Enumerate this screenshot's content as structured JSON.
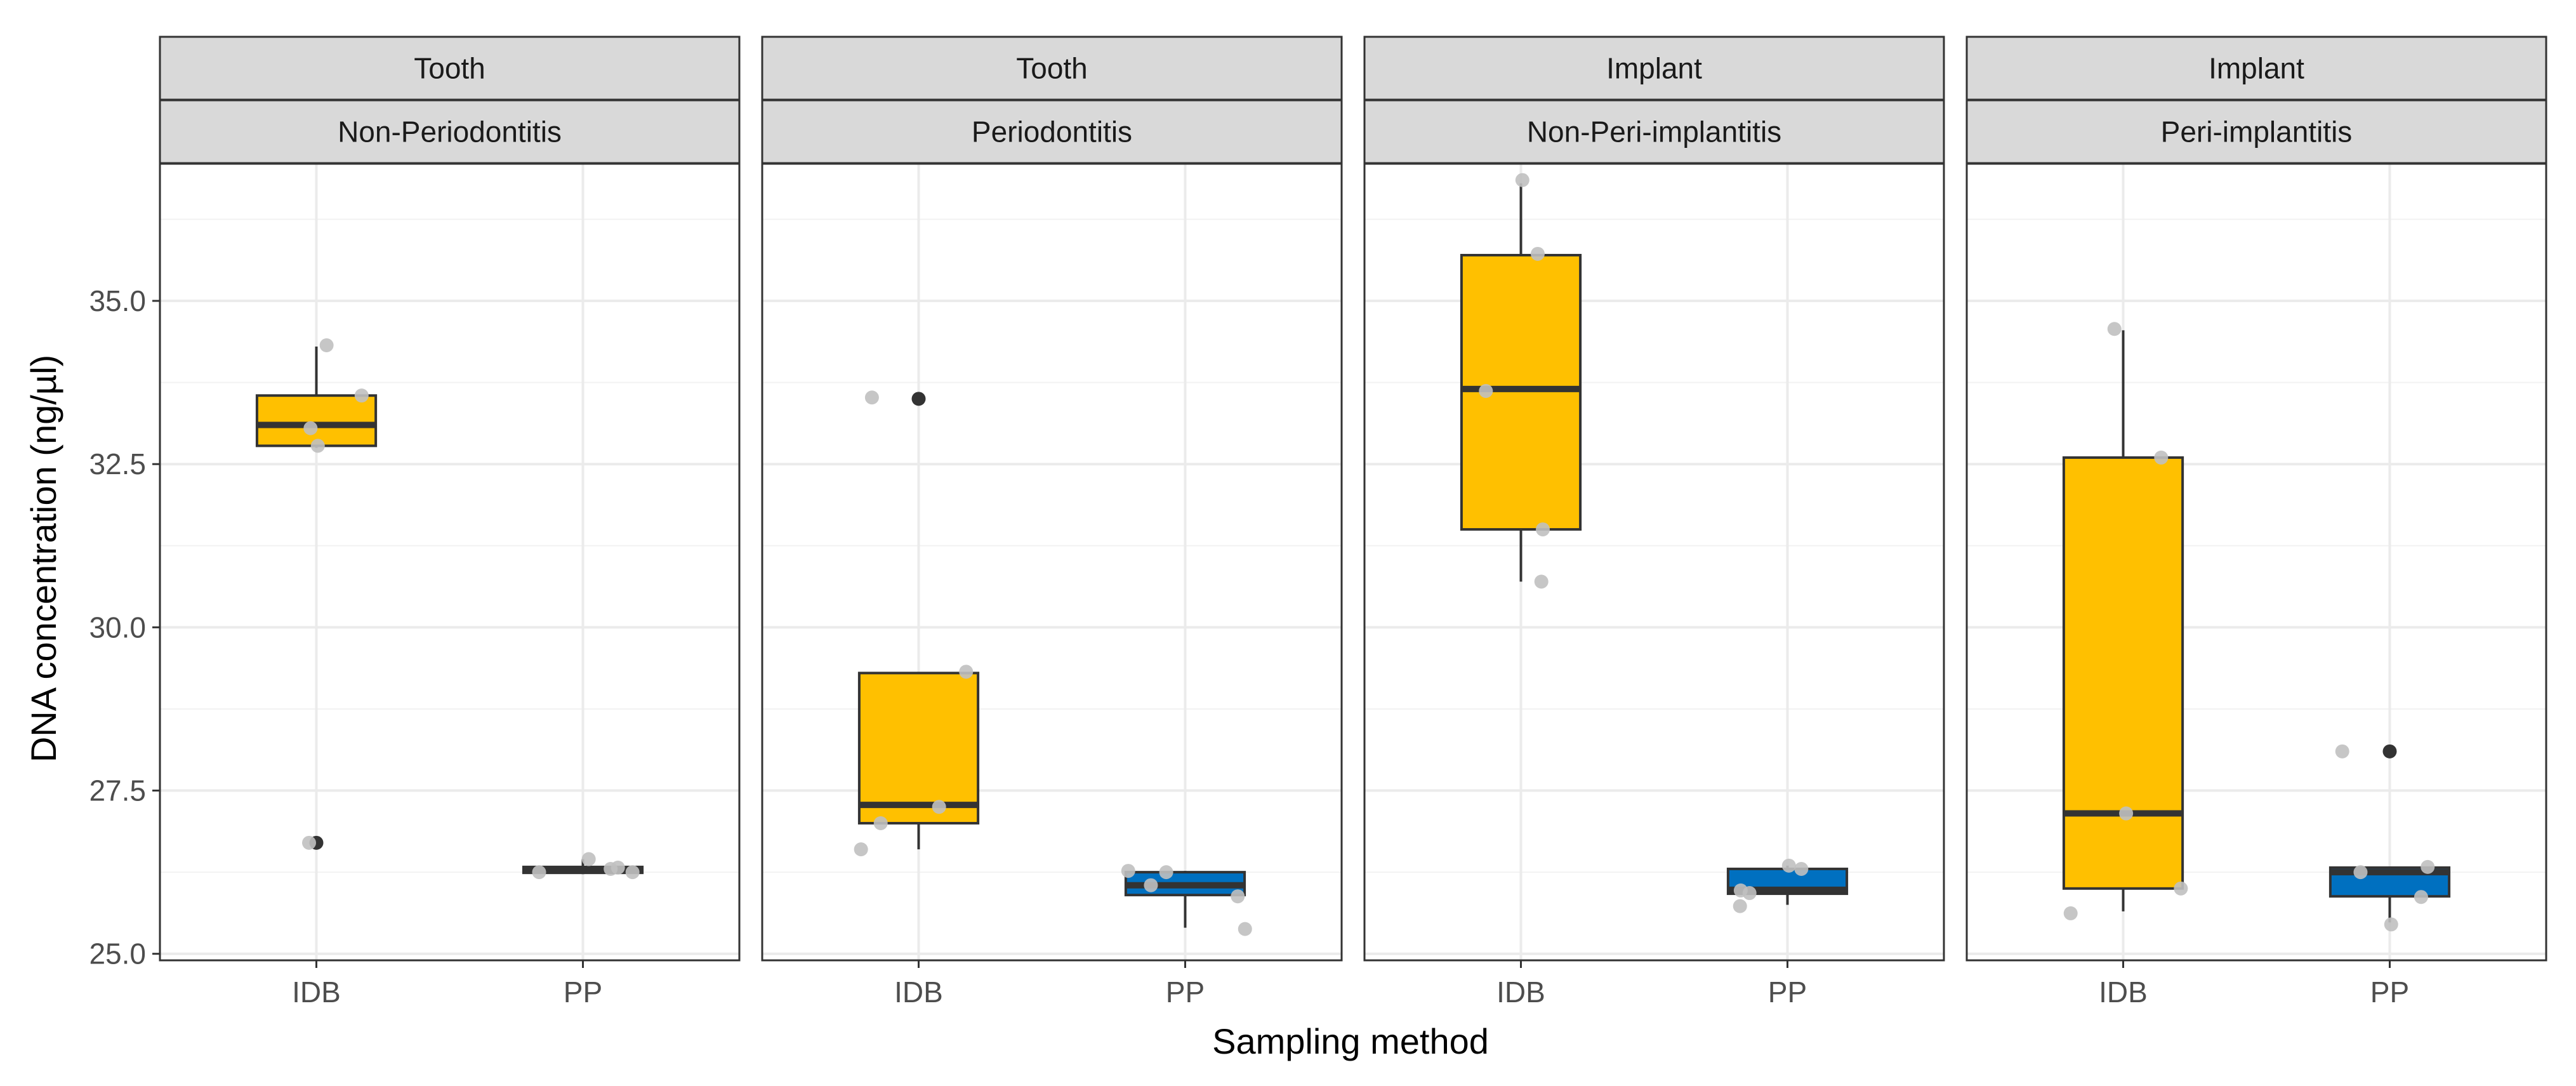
{
  "chart_data": {
    "type": "boxplot",
    "xlabel": "Sampling method",
    "ylabel": "DNA concentration (ng/µl)",
    "ylim": [
      24.9,
      37.1
    ],
    "yticks": [
      25.0,
      27.5,
      30.0,
      32.5,
      35.0
    ],
    "ytick_labels": [
      "25.0",
      "27.5",
      "30.0",
      "32.5",
      "35.0"
    ],
    "categories": [
      "IDB",
      "PP"
    ],
    "fill_colors": {
      "IDB": "#FFC000",
      "PP": "#0070C0"
    },
    "outlier_color": "#333333",
    "jitter_color": "#C0C0C0",
    "panels": [
      {
        "strip_top": "Tooth",
        "strip_bottom": "Non-Periodontitis",
        "boxes": [
          {
            "category": "IDB",
            "lower_whisker": 32.75,
            "q1": 32.78,
            "median": 33.1,
            "q3": 33.55,
            "upper_whisker": 34.3,
            "outliers": [
              26.7
            ]
          },
          {
            "category": "PP",
            "lower_whisker": 26.22,
            "q1": 26.24,
            "median": 26.28,
            "q3": 26.33,
            "upper_whisker": 26.45,
            "outliers": []
          }
        ],
        "points": [
          {
            "category": "IDB",
            "offset": 0.14,
            "value": 34.32
          },
          {
            "category": "IDB",
            "offset": 0.62,
            "value": 33.55
          },
          {
            "category": "IDB",
            "offset": -0.08,
            "value": 33.05
          },
          {
            "category": "IDB",
            "offset": 0.02,
            "value": 32.78
          },
          {
            "category": "IDB",
            "offset": -0.1,
            "value": 26.7
          },
          {
            "category": "PP",
            "offset": -0.6,
            "value": 26.25
          },
          {
            "category": "PP",
            "offset": 0.08,
            "value": 26.45
          },
          {
            "category": "PP",
            "offset": 0.38,
            "value": 26.3
          },
          {
            "category": "PP",
            "offset": 0.48,
            "value": 26.32
          },
          {
            "category": "PP",
            "offset": 0.68,
            "value": 26.25
          }
        ]
      },
      {
        "strip_top": "Tooth",
        "strip_bottom": "Periodontitis",
        "boxes": [
          {
            "category": "IDB",
            "lower_whisker": 26.6,
            "q1": 27.0,
            "median": 27.28,
            "q3": 29.3,
            "upper_whisker": 29.3,
            "outliers": [
              33.5
            ]
          },
          {
            "category": "PP",
            "lower_whisker": 25.4,
            "q1": 25.9,
            "median": 26.05,
            "q3": 26.25,
            "upper_whisker": 26.27,
            "outliers": []
          }
        ],
        "points": [
          {
            "category": "IDB",
            "offset": -0.64,
            "value": 33.52
          },
          {
            "category": "IDB",
            "offset": 0.65,
            "value": 29.32
          },
          {
            "category": "IDB",
            "offset": 0.28,
            "value": 27.25
          },
          {
            "category": "IDB",
            "offset": -0.52,
            "value": 27.0
          },
          {
            "category": "IDB",
            "offset": -0.79,
            "value": 26.6
          },
          {
            "category": "PP",
            "offset": -0.78,
            "value": 26.27
          },
          {
            "category": "PP",
            "offset": -0.26,
            "value": 26.25
          },
          {
            "category": "PP",
            "offset": -0.47,
            "value": 26.05
          },
          {
            "category": "PP",
            "offset": 0.72,
            "value": 25.88
          },
          {
            "category": "PP",
            "offset": 0.82,
            "value": 25.38
          }
        ]
      },
      {
        "strip_top": "Implant",
        "strip_bottom": "Non-Peri-implantitis",
        "boxes": [
          {
            "category": "IDB",
            "lower_whisker": 30.7,
            "q1": 31.5,
            "median": 33.65,
            "q3": 35.7,
            "upper_whisker": 36.8,
            "outliers": []
          },
          {
            "category": "PP",
            "lower_whisker": 25.75,
            "q1": 25.92,
            "median": 25.98,
            "q3": 26.3,
            "upper_whisker": 26.35,
            "outliers": []
          }
        ],
        "points": [
          {
            "category": "IDB",
            "offset": 0.02,
            "value": 36.85
          },
          {
            "category": "IDB",
            "offset": 0.23,
            "value": 35.72
          },
          {
            "category": "IDB",
            "offset": -0.48,
            "value": 33.62
          },
          {
            "category": "IDB",
            "offset": 0.3,
            "value": 31.5
          },
          {
            "category": "IDB",
            "offset": 0.28,
            "value": 30.7
          },
          {
            "category": "PP",
            "offset": -0.64,
            "value": 25.97
          },
          {
            "category": "PP",
            "offset": -0.52,
            "value": 25.93
          },
          {
            "category": "PP",
            "offset": -0.65,
            "value": 25.73
          },
          {
            "category": "PP",
            "offset": 0.02,
            "value": 26.35
          },
          {
            "category": "PP",
            "offset": 0.19,
            "value": 26.3
          }
        ]
      },
      {
        "strip_top": "Implant",
        "strip_bottom": "Peri-implantitis",
        "boxes": [
          {
            "category": "IDB",
            "lower_whisker": 25.65,
            "q1": 26.0,
            "median": 27.15,
            "q3": 32.6,
            "upper_whisker": 34.55,
            "outliers": []
          },
          {
            "category": "PP",
            "lower_whisker": 25.48,
            "q1": 25.88,
            "median": 26.25,
            "q3": 26.32,
            "upper_whisker": 26.33,
            "outliers": [
              28.1
            ]
          }
        ],
        "points": [
          {
            "category": "IDB",
            "offset": -0.12,
            "value": 34.57
          },
          {
            "category": "IDB",
            "offset": 0.52,
            "value": 32.6
          },
          {
            "category": "IDB",
            "offset": 0.04,
            "value": 27.15
          },
          {
            "category": "IDB",
            "offset": 0.79,
            "value": 26.0
          },
          {
            "category": "IDB",
            "offset": -0.72,
            "value": 25.62
          },
          {
            "category": "PP",
            "offset": -0.65,
            "value": 28.1
          },
          {
            "category": "PP",
            "offset": -0.4,
            "value": 26.25
          },
          {
            "category": "PP",
            "offset": 0.52,
            "value": 26.33
          },
          {
            "category": "PP",
            "offset": 0.43,
            "value": 25.87
          },
          {
            "category": "PP",
            "offset": 0.02,
            "value": 25.45
          }
        ]
      }
    ]
  }
}
